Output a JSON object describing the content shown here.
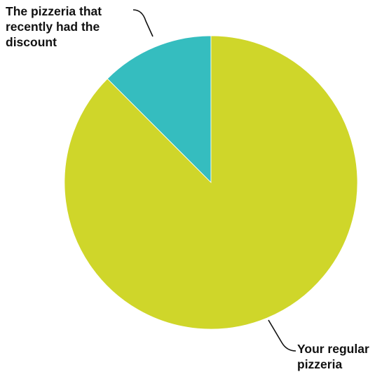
{
  "chart_data": {
    "type": "pie",
    "title": "",
    "slices": [
      {
        "label_lines": [
          "The pizzeria that",
          "recently had the",
          "discount"
        ],
        "value": 12.5,
        "color": "#35bdbf"
      },
      {
        "label_lines": [
          "Your regular",
          "pizzeria"
        ],
        "value": 87.5,
        "color": "#cfd62a"
      }
    ],
    "start_angle_deg": 0,
    "direction": "counterclockwise",
    "legend": "none",
    "label_style": "callout"
  }
}
